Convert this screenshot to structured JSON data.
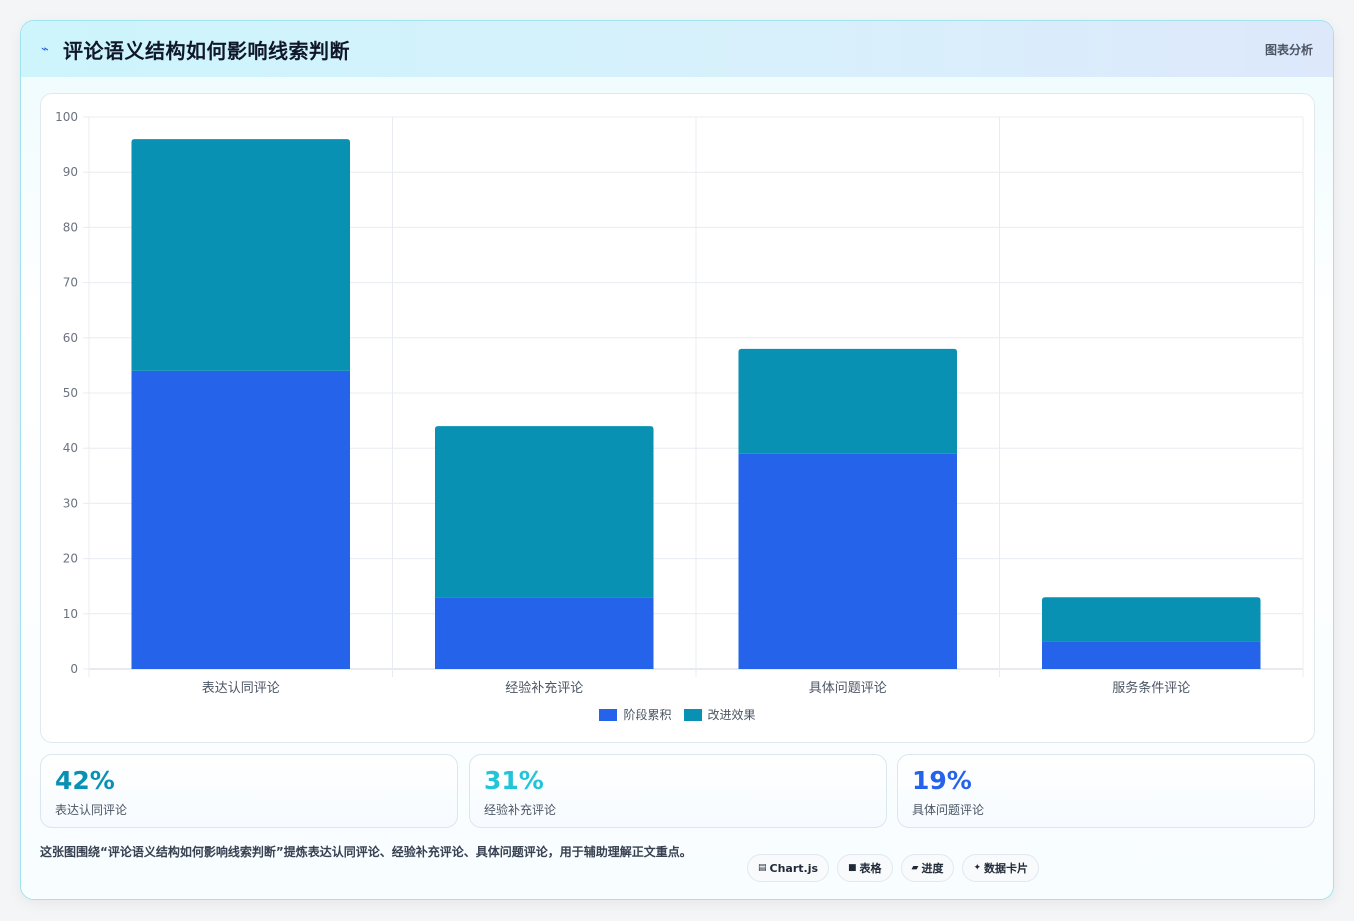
{
  "header": {
    "icon": "pulse-icon",
    "title": "评论语义结构如何影响线索判断",
    "tag": "图表分析"
  },
  "chart_data": {
    "type": "bar",
    "stacked": true,
    "categories": [
      "表达认同评论",
      "经验补充评论",
      "具体问题评论",
      "服务条件评论"
    ],
    "series": [
      {
        "name": "阶段累积",
        "values": [
          54,
          13,
          39,
          5
        ],
        "color": "#2563eb"
      },
      {
        "name": "改进效果",
        "values": [
          42,
          31,
          19,
          8
        ],
        "color": "#0891b2"
      }
    ],
    "ylim": [
      0,
      100
    ],
    "yticks": [
      0,
      10,
      20,
      30,
      40,
      50,
      60,
      70,
      80,
      90,
      100
    ],
    "grid": true,
    "legend_position": "bottom"
  },
  "stats": [
    {
      "value": "42%",
      "label": "表达认同评论",
      "color": "#0891b2"
    },
    {
      "value": "31%",
      "label": "经验补充评论",
      "color": "#22c5d8"
    },
    {
      "value": "19%",
      "label": "具体问题评论",
      "color": "#2563eb"
    }
  ],
  "footer": {
    "text": "这张图围绕“评论语义结构如何影响线索判断”提炼表达认同评论、经验补充评论、具体问题评论，用于辅助理解正文重点。",
    "chips": [
      {
        "icon": "chart-icon",
        "glyph": "▤",
        "label": "Chart.js"
      },
      {
        "icon": "table-icon",
        "glyph": "■",
        "label": "表格"
      },
      {
        "icon": "progress-icon",
        "glyph": "▰",
        "label": "进度"
      },
      {
        "icon": "sparkle-icon",
        "glyph": "✦",
        "label": "数据卡片"
      }
    ]
  }
}
